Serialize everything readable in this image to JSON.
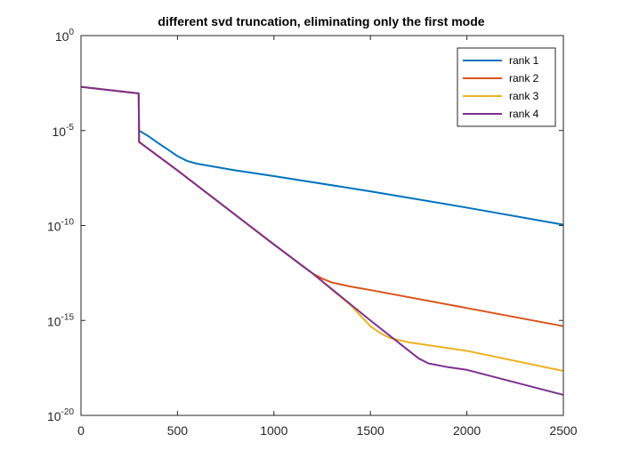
{
  "chart_data": {
    "type": "line",
    "title": "different svd truncation, eliminating only the first mode",
    "xlabel": "",
    "ylabel": "",
    "xlim": [
      0,
      2500
    ],
    "ylim_log10": [
      -20,
      0
    ],
    "y_scale": "log",
    "grid": false,
    "legend_placement": "top-right",
    "x_ticks": [
      0,
      500,
      1000,
      1500,
      2000,
      2500
    ],
    "y_ticks": [
      {
        "base": "10",
        "exp": "0",
        "log10": 0
      },
      {
        "base": "10",
        "exp": "-5",
        "log10": -5
      },
      {
        "base": "10",
        "exp": "-10",
        "log10": -10
      },
      {
        "base": "10",
        "exp": "-15",
        "log10": -15
      },
      {
        "base": "10",
        "exp": "-20",
        "log10": -20
      }
    ],
    "series": [
      {
        "name": "rank 1",
        "color": "#0072BD",
        "x": [
          0,
          299,
          301,
          350,
          400,
          450,
          500,
          550,
          600,
          700,
          800,
          1000,
          1500,
          2000,
          2500
        ],
        "y": [
          "2.0e-3",
          "9.0e-4",
          "1.0e-5",
          "5.0e-6",
          "2.2e-6",
          "1.0e-6",
          "4.5e-7",
          "2.5e-7",
          "1.8e-7",
          "1.2e-7",
          "8.0e-8",
          "4.0e-8",
          "6.3e-9",
          "8.7e-10",
          "1.1e-10"
        ]
      },
      {
        "name": "rank 2",
        "color": "#D95319",
        "x": [
          0,
          299,
          301,
          500,
          800,
          1000,
          1150,
          1200,
          1250,
          1300,
          1400,
          1500,
          2000,
          2500
        ],
        "y": [
          "2.0e-3",
          "9.0e-4",
          "2.5e-6",
          "8.0e-8",
          "3.6e-10",
          "1.0e-11",
          "7.0e-13",
          "3.0e-13",
          "1.6e-13",
          "1.0e-13",
          "6.0e-14",
          "4.0e-14",
          "4.5e-15",
          "5.0e-16"
        ]
      },
      {
        "name": "rank 3",
        "color": "#EDB120",
        "x": [
          0,
          299,
          301,
          500,
          1000,
          1200,
          1400,
          1500,
          1550,
          1600,
          1700,
          2000,
          2500
        ],
        "y": [
          "2.0e-3",
          "9.0e-4",
          "2.5e-6",
          "8.0e-8",
          "1.0e-11",
          "3.0e-13",
          "6.0e-15",
          "5.0e-16",
          "2.2e-16",
          "1.2e-16",
          "7.0e-17",
          "2.5e-17",
          "2.2e-18"
        ]
      },
      {
        "name": "rank 4",
        "color": "#7E2F8E",
        "x": [
          0,
          299,
          301,
          500,
          1000,
          1200,
          1500,
          1700,
          1750,
          1800,
          1900,
          2000,
          2500
        ],
        "y": [
          "2.0e-3",
          "9.0e-4",
          "2.5e-6",
          "8.0e-8",
          "1.0e-11",
          "3.0e-13",
          "1.0e-15",
          "2.5e-17",
          "1.0e-17",
          "5.5e-18",
          "3.5e-18",
          "2.5e-18",
          "1.2e-19"
        ]
      }
    ]
  }
}
